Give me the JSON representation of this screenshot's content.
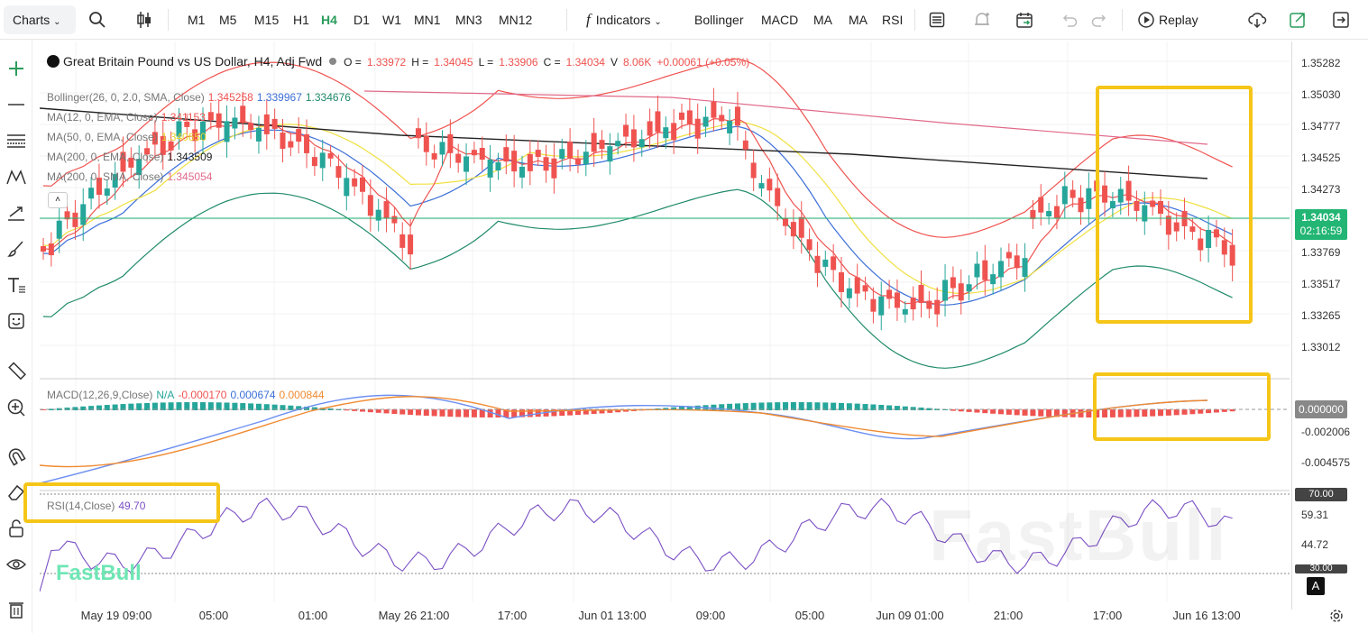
{
  "toolbar": {
    "charts": "Charts",
    "timeframes": [
      "M1",
      "M5",
      "M15",
      "H1",
      "H4",
      "D1",
      "W1",
      "MN1",
      "MN3",
      "MN12"
    ],
    "active_timeframe": "H4",
    "indicators": "Indicators",
    "indicator_shortcuts": [
      "Bollinger",
      "MACD",
      "MA",
      "MA",
      "RSI"
    ],
    "replay": "Replay"
  },
  "symbol": {
    "name": "Great Britain Pound vs US Dollar, H4, Adj Fwd",
    "o_label": "O =",
    "o_value": "1.33972",
    "h_label": "H =",
    "h_value": "1.34045",
    "l_label": "L =",
    "l_value": "1.33906",
    "c_label": "C =",
    "c_value": "1.34034",
    "v_label": "V",
    "v_value": "8.06K",
    "change": "+0.00061 (+0.05%)"
  },
  "indicators": {
    "bollinger": {
      "label": "Bollinger(26, 0, 2.0, SMA, Close)",
      "v1": "1.345258",
      "v2": "1.339967",
      "v3": "1.334676"
    },
    "ma12": {
      "label": "MA(12, 0, EMA, Close)",
      "value": "1.341153"
    },
    "ma50": {
      "label": "MA(50, 0, EMA, Close)",
      "value": "1.340650"
    },
    "ma200e": {
      "label": "MA(200, 0, EMA, Close)",
      "value": "1.343509"
    },
    "ma200s": {
      "label": "MA(200, 0, SMA, Close)",
      "value": "1.345054"
    },
    "macd": {
      "label": "MACD(12,26,9,Close)",
      "na": "N/A",
      "v1": "-0.000170",
      "v2": "0.000674",
      "v3": "0.000844"
    },
    "rsi": {
      "label": "RSI(14,Close)",
      "value": "49.70"
    }
  },
  "price_axis": {
    "labels": [
      "1.35282",
      "1.35030",
      "1.34777",
      "1.34525",
      "1.34273",
      "1.33769",
      "1.33517",
      "1.33265",
      "1.33012"
    ],
    "current_price": "1.34034",
    "countdown": "02:16:59",
    "macd_labels": [
      "0.000000",
      "-0.002006",
      "-0.004575"
    ],
    "rsi_labels": [
      "70.00",
      "59.31",
      "44.72",
      "30.00"
    ]
  },
  "time_axis": [
    "May 19 09:00",
    "05:00",
    "01:00",
    "May 26 21:00",
    "17:00",
    "Jun 01 13:00",
    "09:00",
    "05:00",
    "Jun 09 01:00",
    "21:00",
    "17:00",
    "Jun 16 13:00"
  ],
  "watermark": "FastBull",
  "logo": "FastBull",
  "auto_scale": "A",
  "colors": {
    "up": "#26a69a",
    "down": "#ef5350",
    "accent": "#2a9d5c",
    "highlight": "#f5c518"
  }
}
